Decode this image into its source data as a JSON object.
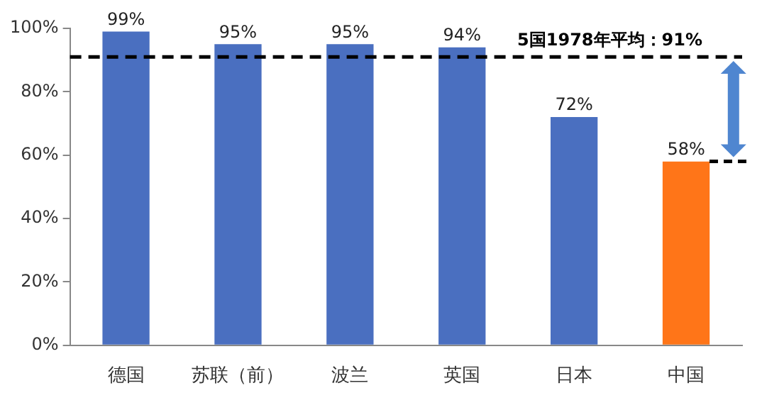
{
  "chart_data": {
    "type": "bar",
    "categories": [
      "德国",
      "苏联（前）",
      "波兰",
      "英国",
      "日本",
      "中国"
    ],
    "values": [
      99,
      95,
      95,
      94,
      72,
      58
    ],
    "colors": [
      "#4a6fc0",
      "#4a6fc0",
      "#4a6fc0",
      "#4a6fc0",
      "#4a6fc0",
      "#ff7518"
    ],
    "value_labels": [
      "99%",
      "95%",
      "95%",
      "94%",
      "72%",
      "58%"
    ],
    "ylim": [
      0,
      100
    ],
    "yticks": [
      {
        "value": 0,
        "label": "0%"
      },
      {
        "value": 20,
        "label": "20%"
      },
      {
        "value": 40,
        "label": "40%"
      },
      {
        "value": 60,
        "label": "60%"
      },
      {
        "value": 80,
        "label": "80%"
      },
      {
        "value": 100,
        "label": "100%"
      }
    ],
    "ref_lines": [
      {
        "axis": "y",
        "value": 91,
        "label": "5国1978年平均：91%",
        "color": "#000000",
        "line_style": "dashed"
      }
    ],
    "grid": false,
    "legend": false
  }
}
